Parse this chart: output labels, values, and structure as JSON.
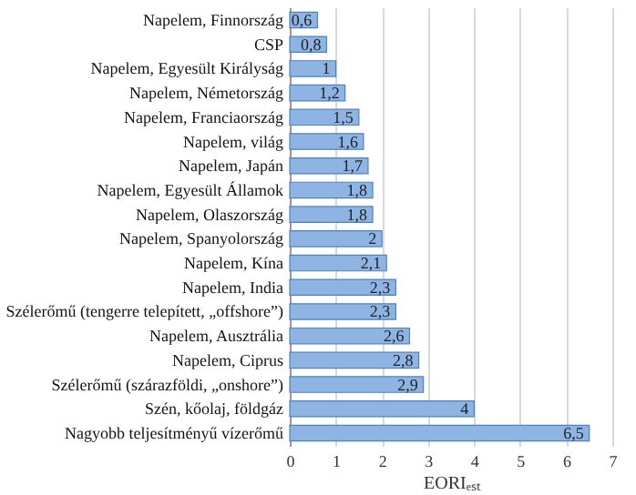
{
  "chart_data": {
    "type": "bar",
    "orientation": "horizontal",
    "xlabel": "EORIₑₛₜ",
    "categories": [
      "Napelem, Finnország",
      "CSP",
      "Napelem, Egyesült Királyság",
      "Napelem, Németország",
      "Napelem, Franciaország",
      "Napelem, világ",
      "Napelem, Japán",
      "Napelem, Egyesült Államok",
      "Napelem, Olaszország",
      "Napelem, Spanyolország",
      "Napelem, Kína",
      "Napelem, India",
      "Szélerőmű (tengerre telepített, „offshore”)",
      "Napelem, Ausztrália",
      "Napelem, Ciprus",
      "Szélerőmű (szárazföldi, „onshore”)",
      "Szén, kőolaj, földgáz",
      "Nagyobb teljesítményű vízerőmű"
    ],
    "values": [
      0.6,
      0.8,
      1,
      1.2,
      1.5,
      1.6,
      1.7,
      1.8,
      1.8,
      2,
      2.1,
      2.3,
      2.3,
      2.6,
      2.8,
      2.9,
      4,
      6.5
    ],
    "value_labels": [
      "0,6",
      "0,8",
      "1",
      "1,2",
      "1,5",
      "1,6",
      "1,7",
      "1,8",
      "1,8",
      "2",
      "2,1",
      "2,3",
      "2,3",
      "2,6",
      "2,8",
      "2,9",
      "4",
      "6,5"
    ],
    "color": "#8eb4e3",
    "xlim": [
      0,
      7
    ],
    "xticks": [
      0,
      1,
      2,
      3,
      4,
      5,
      6,
      7
    ],
    "grid": "x"
  }
}
